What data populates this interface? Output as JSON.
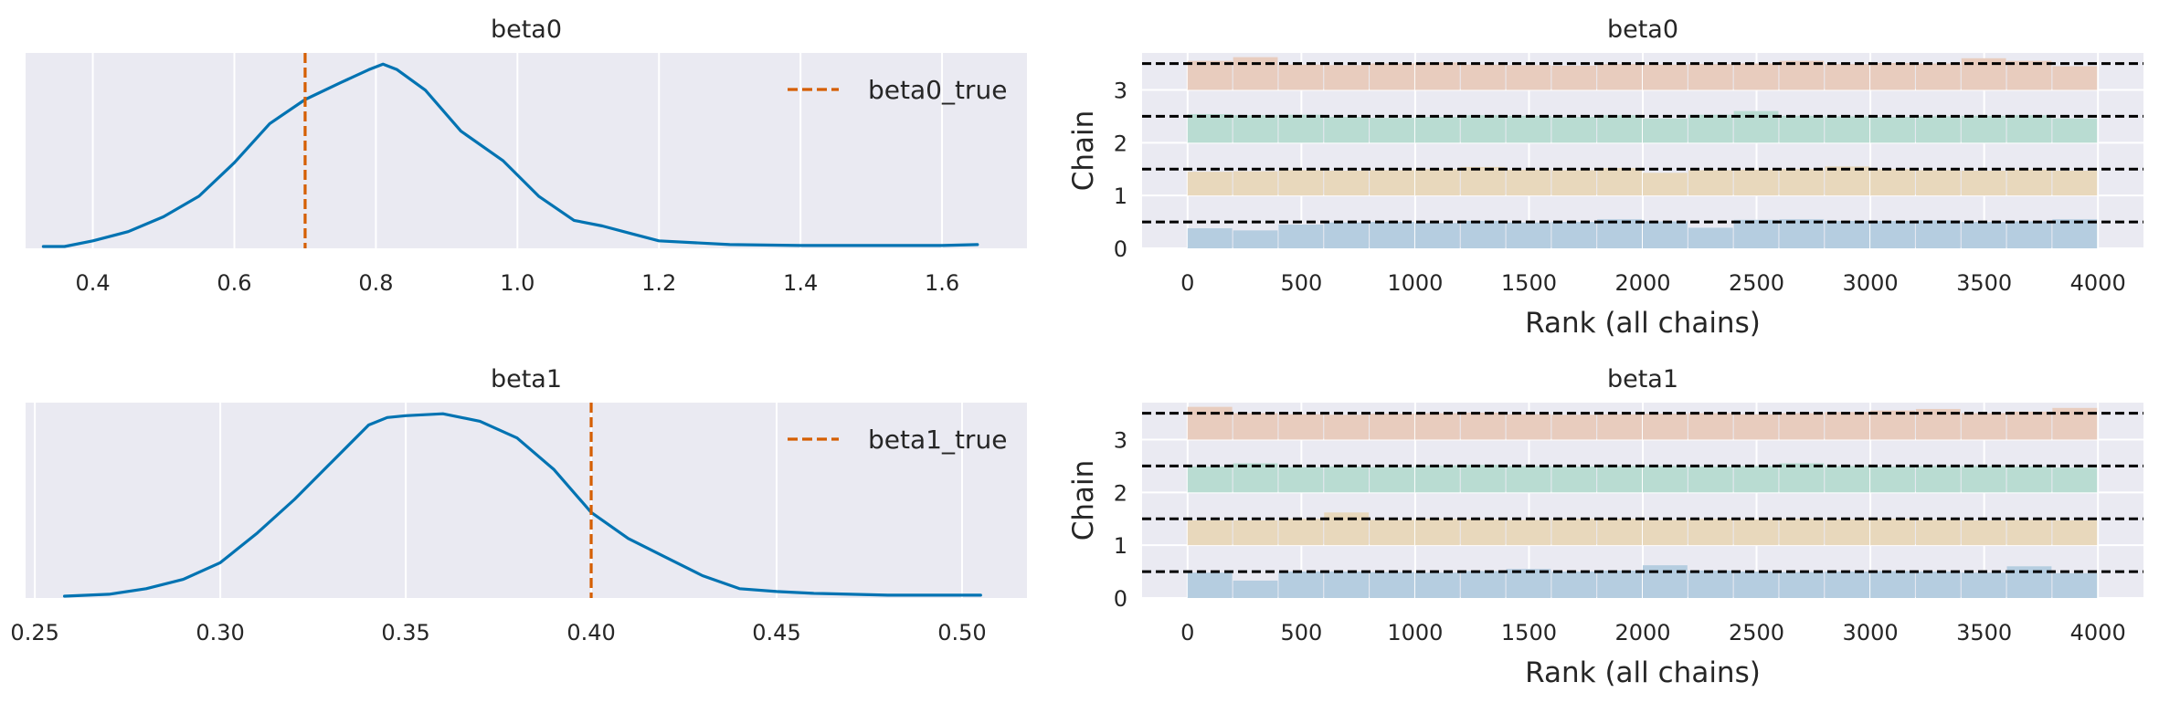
{
  "colors": {
    "background": "#eaeaf2",
    "grid": "#ffffff",
    "kde_line": "#0173b2",
    "reference_line": "#d55e00",
    "chain_colors": [
      "#b5cde0",
      "#e8d8bc",
      "#b9dcd2",
      "#e8ccbe"
    ],
    "hline": "#000000"
  },
  "chart_data": [
    {
      "type": "line",
      "panel": "density",
      "title": "beta0",
      "xlim": [
        0.305,
        1.72
      ],
      "xticks": [
        0.4,
        0.6,
        0.8,
        1.0,
        1.2,
        1.4,
        1.6
      ],
      "xtick_labels": [
        "0.4",
        "0.6",
        "0.8",
        "1.0",
        "1.2",
        "1.4",
        "1.6"
      ],
      "ylim": [
        0,
        1.05
      ],
      "grid": true,
      "legend": {
        "placement": "upper-right",
        "entries": [
          "beta0_true"
        ]
      },
      "reference": {
        "name": "beta0_true",
        "x": 0.7,
        "style": "dashed"
      },
      "series": [
        {
          "x": [
            0.33,
            0.36,
            0.4,
            0.45,
            0.5,
            0.55,
            0.6,
            0.65,
            0.7,
            0.75,
            0.79,
            0.81,
            0.83,
            0.87,
            0.92,
            0.98,
            1.03,
            1.08,
            1.12,
            1.16,
            1.2,
            1.3,
            1.4,
            1.5,
            1.6,
            1.65
          ],
          "y": [
            0.01,
            0.01,
            0.04,
            0.09,
            0.17,
            0.28,
            0.46,
            0.67,
            0.8,
            0.89,
            0.96,
            0.99,
            0.96,
            0.85,
            0.63,
            0.47,
            0.28,
            0.15,
            0.12,
            0.08,
            0.04,
            0.02,
            0.015,
            0.015,
            0.015,
            0.02
          ]
        }
      ]
    },
    {
      "type": "bar",
      "panel": "rank",
      "title": "beta0",
      "xlabel": "Rank (all chains)",
      "ylabel": "Chain",
      "xlim": [
        -200,
        4200
      ],
      "ylim": [
        0,
        3.7
      ],
      "xticks": [
        0,
        500,
        1000,
        1500,
        2000,
        2500,
        3000,
        3500,
        4000
      ],
      "xtick_labels": [
        "0",
        "500",
        "1000",
        "1500",
        "2000",
        "2500",
        "3000",
        "3500",
        "4000"
      ],
      "yticks": [
        0,
        1,
        2,
        3
      ],
      "ytick_labels": [
        "0",
        "1",
        "2",
        "3"
      ],
      "hlines": [
        0.5,
        1.5,
        2.5,
        3.5
      ],
      "bin_edges": [
        0,
        200,
        400,
        600,
        800,
        1000,
        1200,
        1400,
        1600,
        1800,
        2000,
        2200,
        2400,
        2600,
        2800,
        3000,
        3200,
        3400,
        3600,
        3800,
        4000
      ],
      "series": [
        {
          "chain": 0,
          "values": [
            0.38,
            0.34,
            0.45,
            0.49,
            0.5,
            0.48,
            0.52,
            0.49,
            0.5,
            0.55,
            0.51,
            0.39,
            0.54,
            0.55,
            0.52,
            0.52,
            0.53,
            0.5,
            0.51,
            0.55
          ]
        },
        {
          "chain": 1,
          "values": [
            0.45,
            0.46,
            0.48,
            0.47,
            0.48,
            0.5,
            0.54,
            0.49,
            0.48,
            0.52,
            0.43,
            0.48,
            0.49,
            0.5,
            0.55,
            0.5,
            0.48,
            0.47,
            0.49,
            0.47
          ]
        },
        {
          "chain": 2,
          "values": [
            0.54,
            0.52,
            0.53,
            0.49,
            0.47,
            0.49,
            0.52,
            0.51,
            0.49,
            0.52,
            0.46,
            0.53,
            0.6,
            0.51,
            0.5,
            0.49,
            0.5,
            0.51,
            0.52,
            0.46
          ]
        },
        {
          "chain": 3,
          "values": [
            0.55,
            0.62,
            0.48,
            0.47,
            0.5,
            0.52,
            0.48,
            0.47,
            0.46,
            0.49,
            0.48,
            0.49,
            0.5,
            0.55,
            0.49,
            0.51,
            0.5,
            0.6,
            0.55,
            0.45
          ]
        }
      ]
    },
    {
      "type": "line",
      "panel": "density",
      "title": "beta1",
      "xlim": [
        0.2475,
        0.5175
      ],
      "xticks": [
        0.25,
        0.3,
        0.35,
        0.4,
        0.45,
        0.5
      ],
      "xtick_labels": [
        "0.25",
        "0.30",
        "0.35",
        "0.40",
        "0.45",
        "0.50"
      ],
      "ylim": [
        0,
        1.05
      ],
      "grid": true,
      "legend": {
        "placement": "upper-right",
        "entries": [
          "beta1_true"
        ]
      },
      "reference": {
        "name": "beta1_true",
        "x": 0.4,
        "style": "dashed"
      },
      "series": [
        {
          "x": [
            0.258,
            0.27,
            0.28,
            0.29,
            0.3,
            0.31,
            0.32,
            0.33,
            0.34,
            0.345,
            0.35,
            0.36,
            0.37,
            0.38,
            0.39,
            0.4,
            0.41,
            0.42,
            0.43,
            0.44,
            0.45,
            0.46,
            0.47,
            0.48,
            0.49,
            0.505
          ],
          "y": [
            0.01,
            0.02,
            0.05,
            0.1,
            0.19,
            0.35,
            0.53,
            0.73,
            0.93,
            0.97,
            0.98,
            0.99,
            0.95,
            0.86,
            0.69,
            0.46,
            0.32,
            0.22,
            0.12,
            0.05,
            0.035,
            0.025,
            0.02,
            0.015,
            0.015,
            0.015
          ]
        }
      ]
    },
    {
      "type": "bar",
      "panel": "rank",
      "title": "beta1",
      "xlabel": "Rank (all chains)",
      "ylabel": "Chain",
      "xlim": [
        -200,
        4200
      ],
      "ylim": [
        0,
        3.7
      ],
      "xticks": [
        0,
        500,
        1000,
        1500,
        2000,
        2500,
        3000,
        3500,
        4000
      ],
      "xtick_labels": [
        "0",
        "500",
        "1000",
        "1500",
        "2000",
        "2500",
        "3000",
        "3500",
        "4000"
      ],
      "yticks": [
        0,
        1,
        2,
        3
      ],
      "ytick_labels": [
        "0",
        "1",
        "2",
        "3"
      ],
      "hlines": [
        0.5,
        1.5,
        2.5,
        3.5
      ],
      "bin_edges": [
        0,
        200,
        400,
        600,
        800,
        1000,
        1200,
        1400,
        1600,
        1800,
        2000,
        2200,
        2400,
        2600,
        2800,
        3000,
        3200,
        3400,
        3600,
        3800,
        4000
      ],
      "series": [
        {
          "chain": 0,
          "values": [
            0.48,
            0.33,
            0.5,
            0.5,
            0.49,
            0.48,
            0.51,
            0.55,
            0.5,
            0.52,
            0.62,
            0.52,
            0.5,
            0.49,
            0.5,
            0.51,
            0.5,
            0.48,
            0.6,
            0.47
          ]
        },
        {
          "chain": 1,
          "values": [
            0.47,
            0.47,
            0.5,
            0.62,
            0.48,
            0.5,
            0.49,
            0.48,
            0.5,
            0.5,
            0.48,
            0.5,
            0.49,
            0.5,
            0.49,
            0.5,
            0.48,
            0.47,
            0.48,
            0.47
          ]
        },
        {
          "chain": 2,
          "values": [
            0.49,
            0.55,
            0.48,
            0.49,
            0.48,
            0.51,
            0.52,
            0.5,
            0.49,
            0.5,
            0.5,
            0.49,
            0.5,
            0.55,
            0.5,
            0.49,
            0.5,
            0.5,
            0.49,
            0.47
          ]
        },
        {
          "chain": 3,
          "values": [
            0.62,
            0.5,
            0.48,
            0.47,
            0.49,
            0.5,
            0.51,
            0.48,
            0.47,
            0.48,
            0.49,
            0.5,
            0.48,
            0.5,
            0.52,
            0.55,
            0.58,
            0.5,
            0.53,
            0.6
          ]
        }
      ]
    }
  ]
}
